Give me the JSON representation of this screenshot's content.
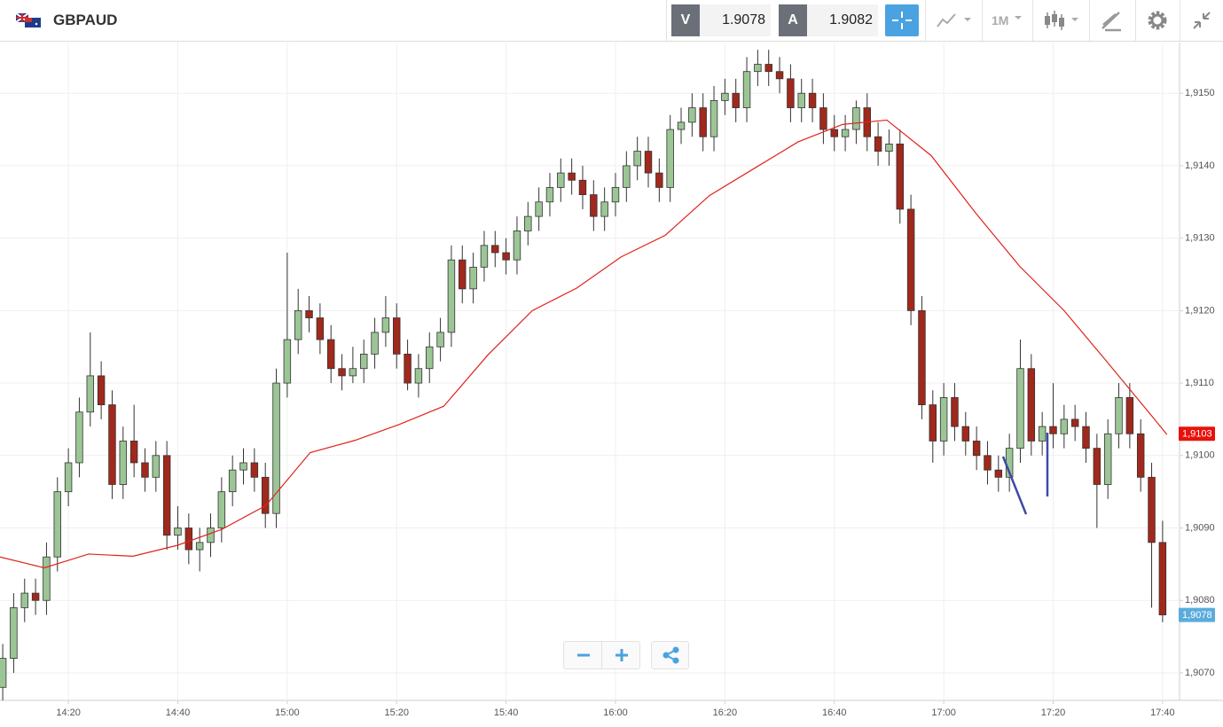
{
  "header": {
    "symbol": "GBPAUD",
    "sell_label": "V",
    "sell_price": "1.9078",
    "buy_label": "A",
    "buy_price": "1.9082",
    "timeframe": "1M"
  },
  "chart_data": {
    "type": "candlestick",
    "up_color": "#9cc596",
    "down_color": "#a1281c",
    "x": [
      848,
      850,
      852,
      854,
      856,
      858,
      860,
      862,
      864,
      866,
      868,
      870,
      872,
      874,
      876,
      878,
      880,
      882,
      884,
      886,
      888,
      890,
      892,
      894,
      896,
      898,
      900,
      902,
      904,
      906,
      908,
      910,
      912,
      914,
      916,
      918,
      920,
      922,
      924,
      926,
      928,
      930,
      932,
      934,
      936,
      938,
      940,
      942,
      944,
      946,
      948,
      950,
      952,
      954,
      956,
      958,
      960,
      962,
      964,
      966,
      968,
      970,
      972,
      974,
      976,
      978,
      980,
      982,
      984,
      986,
      988,
      990,
      992,
      994,
      996,
      998,
      1000,
      1002,
      1004,
      1006,
      1008,
      1010,
      1012,
      1014,
      1016,
      1018,
      1020,
      1022,
      1024,
      1026,
      1028,
      1030,
      1032,
      1034,
      1036,
      1038,
      1040,
      1042,
      1044,
      1046,
      1048,
      1050,
      1052,
      1054,
      1056,
      1058,
      1060
    ],
    "open": [
      1.9068,
      1.9072,
      1.9079,
      1.9081,
      1.908,
      1.9086,
      1.9095,
      1.9099,
      1.9106,
      1.9111,
      1.9107,
      1.9096,
      1.9102,
      1.9099,
      1.9097,
      1.91,
      1.9089,
      1.909,
      1.9087,
      1.9088,
      1.909,
      1.9095,
      1.9098,
      1.9099,
      1.9097,
      1.9092,
      1.911,
      1.9116,
      1.912,
      1.9119,
      1.9116,
      1.9112,
      1.9111,
      1.9112,
      1.9114,
      1.9117,
      1.9119,
      1.9114,
      1.911,
      1.9112,
      1.9115,
      1.9117,
      1.9127,
      1.9123,
      1.9126,
      1.9129,
      1.9128,
      1.9127,
      1.9131,
      1.9133,
      1.9135,
      1.9137,
      1.9139,
      1.9138,
      1.9136,
      1.9133,
      1.9135,
      1.9137,
      1.914,
      1.9142,
      1.9139,
      1.9137,
      1.9145,
      1.9146,
      1.9148,
      1.9144,
      1.9149,
      1.915,
      1.9148,
      1.9153,
      1.9154,
      1.9153,
      1.9152,
      1.9148,
      1.915,
      1.9148,
      1.9145,
      1.9144,
      1.9145,
      1.9148,
      1.9144,
      1.9142,
      1.9143,
      1.9134,
      1.912,
      1.9107,
      1.9102,
      1.9108,
      1.9104,
      1.9102,
      1.91,
      1.9098,
      1.9097,
      1.9101,
      1.9112,
      1.9102,
      1.9104,
      1.9103,
      1.9105,
      1.9104,
      1.9101,
      1.9096,
      1.9103,
      1.9108,
      1.9103,
      1.9097,
      1.9088
    ],
    "high": [
      1.9074,
      1.9081,
      1.9083,
      1.9083,
      1.9088,
      1.9097,
      1.9101,
      1.9108,
      1.9117,
      1.9113,
      1.9109,
      1.9104,
      1.9107,
      1.9101,
      1.9102,
      1.9102,
      1.9093,
      1.9092,
      1.909,
      1.9092,
      1.9097,
      1.91,
      1.9101,
      1.9101,
      1.9099,
      1.9112,
      1.9128,
      1.9123,
      1.9122,
      1.9121,
      1.9118,
      1.9114,
      1.9115,
      1.9116,
      1.9119,
      1.9122,
      1.9121,
      1.9116,
      1.9114,
      1.9117,
      1.9119,
      1.9129,
      1.9129,
      1.9128,
      1.9131,
      1.9131,
      1.913,
      1.9133,
      1.9135,
      1.9137,
      1.9139,
      1.9141,
      1.9141,
      1.914,
      1.9138,
      1.9137,
      1.9139,
      1.9142,
      1.9144,
      1.9144,
      1.9141,
      1.9147,
      1.9148,
      1.915,
      1.915,
      1.9151,
      1.9152,
      1.9152,
      1.9155,
      1.9156,
      1.9156,
      1.9155,
      1.9154,
      1.9152,
      1.9152,
      1.915,
      1.9147,
      1.9147,
      1.9149,
      1.915,
      1.9146,
      1.9145,
      1.9145,
      1.9136,
      1.9122,
      1.9109,
      1.911,
      1.911,
      1.9106,
      1.9104,
      1.9102,
      1.91,
      1.9103,
      1.9116,
      1.9114,
      1.9106,
      1.911,
      1.9107,
      1.9107,
      1.9106,
      1.9103,
      1.9105,
      1.911,
      1.911,
      1.9105,
      1.9099,
      1.9091
    ],
    "low": [
      1.9066,
      1.907,
      1.9077,
      1.9078,
      1.9078,
      1.9084,
      1.9093,
      1.9097,
      1.9104,
      1.9105,
      1.9094,
      1.9094,
      1.9097,
      1.9095,
      1.9095,
      1.9087,
      1.9087,
      1.9085,
      1.9084,
      1.9086,
      1.9088,
      1.9093,
      1.9096,
      1.9095,
      1.909,
      1.909,
      1.9108,
      1.9114,
      1.9117,
      1.9114,
      1.911,
      1.9109,
      1.911,
      1.911,
      1.9112,
      1.9115,
      1.9112,
      1.9109,
      1.9108,
      1.911,
      1.9113,
      1.9115,
      1.9121,
      1.9121,
      1.9124,
      1.9126,
      1.9125,
      1.9125,
      1.9129,
      1.9131,
      1.9133,
      1.9135,
      1.9136,
      1.9134,
      1.9131,
      1.9131,
      1.9133,
      1.9135,
      1.9138,
      1.9137,
      1.9135,
      1.9135,
      1.9143,
      1.9144,
      1.9142,
      1.9142,
      1.9147,
      1.9146,
      1.9146,
      1.9151,
      1.9151,
      1.915,
      1.9146,
      1.9146,
      1.9146,
      1.9143,
      1.9142,
      1.9142,
      1.9143,
      1.9142,
      1.914,
      1.914,
      1.9132,
      1.9118,
      1.9105,
      1.9099,
      1.91,
      1.9102,
      1.91,
      1.9098,
      1.9096,
      1.9095,
      1.9095,
      1.9099,
      1.91,
      1.91,
      1.9101,
      1.9101,
      1.9102,
      1.9099,
      1.909,
      1.9094,
      1.9101,
      1.9101,
      1.9095,
      1.9079,
      1.9077
    ],
    "close": [
      1.9072,
      1.9079,
      1.9081,
      1.908,
      1.9086,
      1.9095,
      1.9099,
      1.9106,
      1.9111,
      1.9107,
      1.9096,
      1.9102,
      1.9099,
      1.9097,
      1.91,
      1.9089,
      1.909,
      1.9087,
      1.9088,
      1.909,
      1.9095,
      1.9098,
      1.9099,
      1.9097,
      1.9092,
      1.911,
      1.9116,
      1.912,
      1.9119,
      1.9116,
      1.9112,
      1.9111,
      1.9112,
      1.9114,
      1.9117,
      1.9119,
      1.9114,
      1.911,
      1.9112,
      1.9115,
      1.9117,
      1.9127,
      1.9123,
      1.9126,
      1.9129,
      1.9128,
      1.9127,
      1.9131,
      1.9133,
      1.9135,
      1.9137,
      1.9139,
      1.9138,
      1.9136,
      1.9133,
      1.9135,
      1.9137,
      1.914,
      1.9142,
      1.9139,
      1.9137,
      1.9145,
      1.9146,
      1.9148,
      1.9144,
      1.9149,
      1.915,
      1.9148,
      1.9153,
      1.9154,
      1.9153,
      1.9152,
      1.9148,
      1.915,
      1.9148,
      1.9145,
      1.9144,
      1.9145,
      1.9148,
      1.9144,
      1.9142,
      1.9143,
      1.9134,
      1.912,
      1.9107,
      1.9102,
      1.9108,
      1.9104,
      1.9102,
      1.91,
      1.9098,
      1.9097,
      1.9101,
      1.9112,
      1.9102,
      1.9104,
      1.9103,
      1.9105,
      1.9104,
      1.9101,
      1.9096,
      1.9103,
      1.9108,
      1.9103,
      1.9097,
      1.9088,
      1.9078
    ],
    "overlay": {
      "type": "line",
      "color": "#e0231b",
      "x": [
        847.5,
        855.6,
        863.7,
        871.8,
        879.9,
        888.0,
        896.1,
        904.2,
        912.4,
        920.5,
        928.6,
        936.7,
        944.8,
        952.9,
        961.0,
        969.1,
        977.2,
        985.3,
        993.4,
        1001.5,
        1009.6,
        1017.7,
        1025.8,
        1033.9,
        1042.0,
        1050.1,
        1058.2,
        1060.8
      ],
      "values": [
        1.9086,
        1.90845,
        1.90864,
        1.90861,
        1.90876,
        1.90898,
        1.90931,
        1.91004,
        1.91021,
        1.91043,
        1.91068,
        1.91139,
        1.912,
        1.91231,
        1.91274,
        1.91304,
        1.91359,
        1.91396,
        1.91433,
        1.91457,
        1.91463,
        1.91414,
        1.91335,
        1.91261,
        1.912,
        1.91127,
        1.91053,
        1.91029
      ]
    },
    "price_markers": [
      {
        "value": 1.9103,
        "label": "1,9103",
        "color": "#e8120c"
      },
      {
        "value": 1.9078,
        "label": "1,9078",
        "color": "#5aacdc"
      }
    ],
    "xlim": [
      847.5,
      1063.1
    ],
    "xticks": [
      {
        "value": 860,
        "label": "14:20"
      },
      {
        "value": 880,
        "label": "14:40"
      },
      {
        "value": 900,
        "label": "15:00"
      },
      {
        "value": 920,
        "label": "15:20"
      },
      {
        "value": 940,
        "label": "15:40"
      },
      {
        "value": 960,
        "label": "16:00"
      },
      {
        "value": 980,
        "label": "16:20"
      },
      {
        "value": 1000,
        "label": "16:40"
      },
      {
        "value": 1020,
        "label": "17:00"
      },
      {
        "value": 1040,
        "label": "17:20"
      },
      {
        "value": 1060,
        "label": "17:40"
      }
    ],
    "ylim": [
      1.90662,
      1.9157
    ],
    "yticks": [
      {
        "value": 1.907,
        "label": "1,9070"
      },
      {
        "value": 1.908,
        "label": "1,9080"
      },
      {
        "value": 1.909,
        "label": "1,9090"
      },
      {
        "value": 1.91,
        "label": "1,9100"
      },
      {
        "value": 1.911,
        "label": "1,9110"
      },
      {
        "value": 1.912,
        "label": "1,9120"
      },
      {
        "value": 1.913,
        "label": "1,9130"
      },
      {
        "value": 1.914,
        "label": "1,9140"
      },
      {
        "value": 1.915,
        "label": "1,9150"
      }
    ],
    "grid": true
  }
}
